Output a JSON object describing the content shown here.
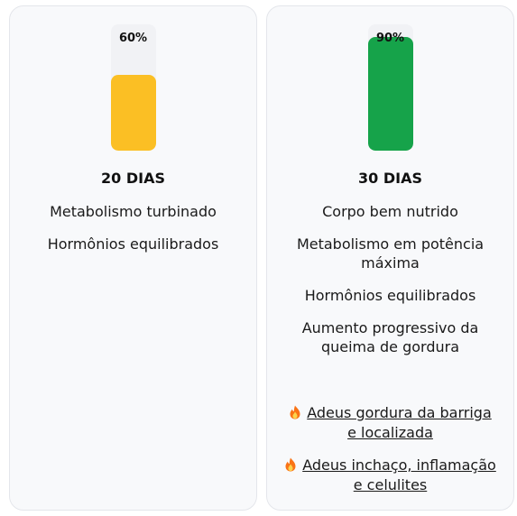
{
  "colors": {
    "yellow": "#fbbf24",
    "green": "#16a34a",
    "track": "#f1f2f5"
  },
  "plans": [
    {
      "percent_label": "60%",
      "progress": 0.6,
      "title": "20 DIAS",
      "benefits": [
        "Metabolismo turbinado",
        "Hormônios equilibrados"
      ],
      "promos": []
    },
    {
      "percent_label": "90%",
      "progress": 0.9,
      "title": "30 DIAS",
      "benefits": [
        "Corpo bem nutrido",
        "Metabolismo em potência máxima",
        "Hormônios equilibrados",
        "Aumento progressivo da queima de gordura"
      ],
      "promos": [
        {
          "icon": "fire-icon",
          "text": "Adeus gordura da barriga e localizada"
        },
        {
          "icon": "fire-icon",
          "text": "Adeus inchaço, inflamação e celulites"
        }
      ]
    }
  ]
}
